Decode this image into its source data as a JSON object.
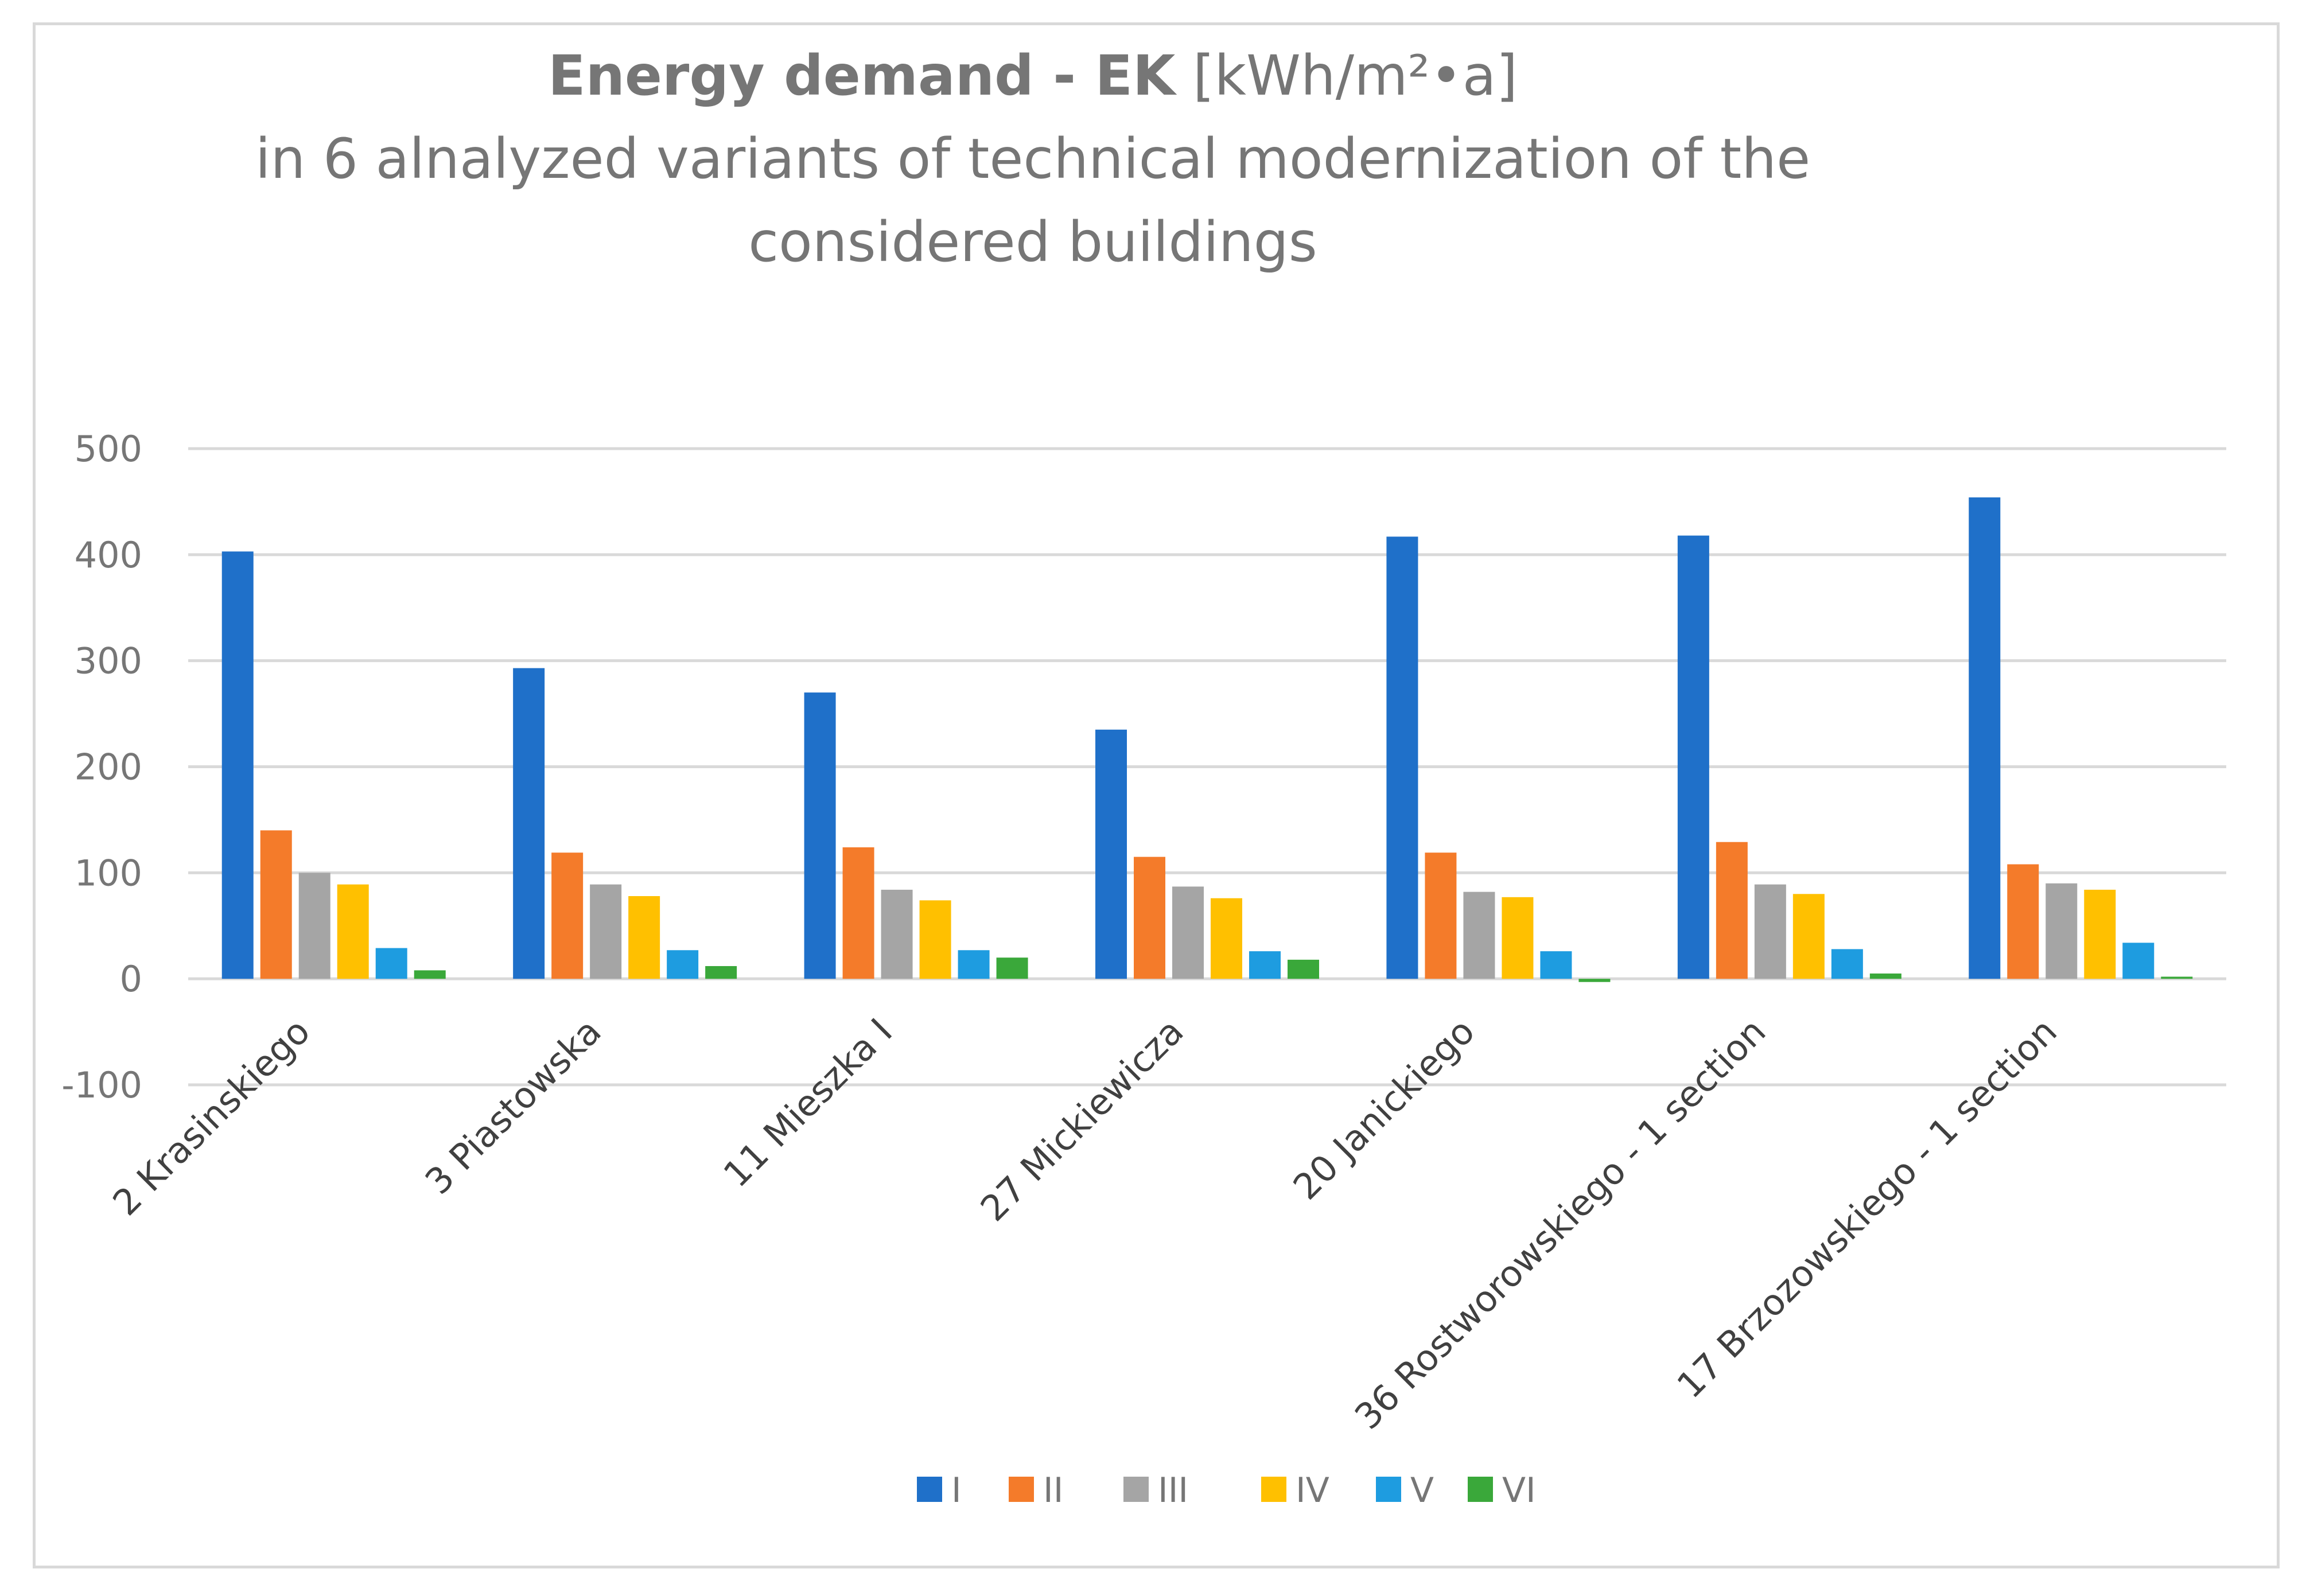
{
  "chart_data": {
    "type": "bar",
    "title": {
      "bold": "Energy demand - EK",
      "unit": "[kWh/m²•a]",
      "subtitle_line1": "in 6 alnalyzed variants of technical modernization of the",
      "subtitle_line2": "considered buildings"
    },
    "categories": [
      "2 Krasinskiego",
      "3 Piastowska",
      "11 Mieszka I",
      "27 Mickiewicza",
      "20 Janickiego",
      "36 Rostworowskiego - 1 section",
      "17 Brzozowskiego - 1 section"
    ],
    "series": [
      {
        "name": "I",
        "color": "#1f70c9",
        "values": [
          403,
          293,
          270,
          235,
          417,
          418,
          454
        ]
      },
      {
        "name": "II",
        "color": "#f47b2a",
        "values": [
          140,
          119,
          124,
          115,
          119,
          129,
          108
        ]
      },
      {
        "name": "III",
        "color": "#a5a5a5",
        "values": [
          100,
          89,
          84,
          87,
          82,
          89,
          90
        ]
      },
      {
        "name": "IV",
        "color": "#ffc000",
        "values": [
          89,
          78,
          74,
          76,
          77,
          80,
          84
        ]
      },
      {
        "name": "V",
        "color": "#1e9ce0",
        "values": [
          29,
          27,
          27,
          26,
          26,
          28,
          34
        ]
      },
      {
        "name": "VI",
        "color": "#3aa83a",
        "values": [
          8,
          12,
          20,
          18,
          -3,
          5,
          2
        ]
      }
    ],
    "y_axis": {
      "min": -100,
      "max": 500,
      "step": 100,
      "tick_labels": [
        "-100",
        "0",
        "100",
        "200",
        "300",
        "400",
        "500"
      ]
    },
    "grid": true,
    "legend_position": "bottom"
  }
}
